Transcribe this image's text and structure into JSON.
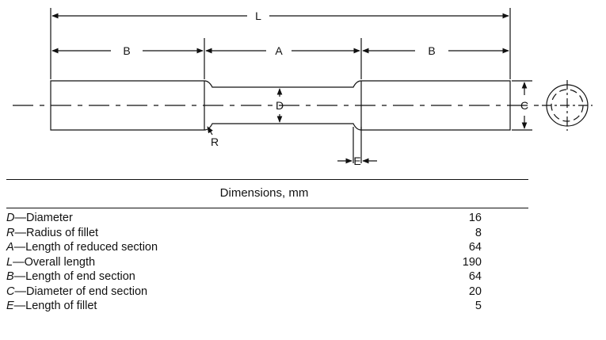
{
  "drawing": {
    "labels": {
      "L": "L",
      "A": "A",
      "B_left": "B",
      "B_right": "B",
      "D": "D",
      "C": "C",
      "R": "R",
      "E": "E"
    }
  },
  "table": {
    "header": "Dimensions, mm",
    "rows": [
      {
        "symbol": "D",
        "desc": "—Diameter",
        "value": "16"
      },
      {
        "symbol": "R",
        "desc": "—Radius of fillet",
        "value": "8"
      },
      {
        "symbol": "A",
        "desc": "—Length of reduced section",
        "value": "64"
      },
      {
        "symbol": "L",
        "desc": "—Overall length",
        "value": "190"
      },
      {
        "symbol": "B",
        "desc": "—Length of end section",
        "value": "64"
      },
      {
        "symbol": "C",
        "desc": "—Diameter of end section",
        "value": "20"
      },
      {
        "symbol": "E",
        "desc": "—Length of fillet",
        "value": "5"
      }
    ]
  }
}
